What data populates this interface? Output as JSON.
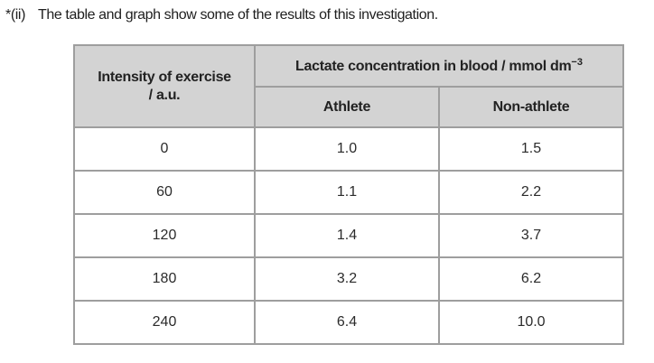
{
  "question": {
    "label": "*(ii)",
    "text": "The table and graph show some of the results of this investigation."
  },
  "table": {
    "header": {
      "intensity_line1": "Intensity of exercise",
      "intensity_line2": "/ a.u.",
      "lactate_label": "Lactate concentration in blood / mmol dm",
      "lactate_superscript": "−3",
      "athlete": "Athlete",
      "non_athlete": "Non-athlete"
    },
    "rows": [
      {
        "intensity": "0",
        "athlete": "1.0",
        "non_athlete": "1.5"
      },
      {
        "intensity": "60",
        "athlete": "1.1",
        "non_athlete": "2.2"
      },
      {
        "intensity": "120",
        "athlete": "1.4",
        "non_athlete": "3.7"
      },
      {
        "intensity": "180",
        "athlete": "3.2",
        "non_athlete": "6.2"
      },
      {
        "intensity": "240",
        "athlete": "6.4",
        "non_athlete": "10.0"
      }
    ]
  },
  "colors": {
    "header_bg": "#d3d3d3",
    "border": "#9e9e9e",
    "text": "#262626",
    "page_bg": "#ffffff"
  }
}
